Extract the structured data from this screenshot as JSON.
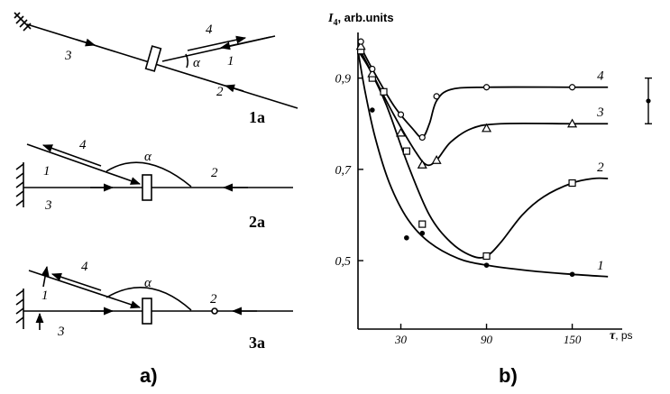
{
  "panel_a": {
    "label": "a)",
    "diagrams": [
      {
        "id": "1a",
        "label": "1a",
        "beam_labels": [
          "1",
          "2",
          "3",
          "4"
        ],
        "angle_label": "α"
      },
      {
        "id": "2a",
        "label": "2a",
        "beam_labels": [
          "1",
          "2",
          "3",
          "4"
        ],
        "angle_label": "α"
      },
      {
        "id": "3a",
        "label": "3a",
        "beam_labels": [
          "1",
          "2",
          "3",
          "4"
        ],
        "angle_label": "α"
      }
    ]
  },
  "panel_b": {
    "label": "b)",
    "y_title_main": "I",
    "y_title_sub": "4",
    "y_title_rest": ", arb.units",
    "x_title_main": "τ",
    "x_title_rest": ", ps",
    "chart_data": {
      "type": "line",
      "xlabel": "τ, ps",
      "ylabel": "I4, arb.units",
      "xlim": [
        0,
        185
      ],
      "ylim": [
        0.35,
        1.0
      ],
      "xticks": [
        30,
        90,
        150
      ],
      "xtick_labels": [
        "30",
        "90",
        "150"
      ],
      "yticks": [
        0.9,
        0.7,
        0.5
      ],
      "ytick_labels": [
        "0,9",
        "0,7",
        "0,5"
      ],
      "error_bar": {
        "y": 0.85,
        "half_width": 0.05
      },
      "series": [
        {
          "name": "1",
          "marker": "filled-circle",
          "x": [
            2,
            10,
            34,
            45,
            90,
            150
          ],
          "y": [
            0.96,
            0.83,
            0.55,
            0.56,
            0.49,
            0.47
          ],
          "curve": [
            [
              0,
              0.96
            ],
            [
              5,
              0.87
            ],
            [
              12,
              0.77
            ],
            [
              22,
              0.67
            ],
            [
              35,
              0.59
            ],
            [
              50,
              0.54
            ],
            [
              70,
              0.505
            ],
            [
              90,
              0.49
            ],
            [
              120,
              0.478
            ],
            [
              150,
              0.47
            ],
            [
              175,
              0.465
            ]
          ]
        },
        {
          "name": "2",
          "marker": "open-square",
          "x": [
            2,
            10,
            18,
            34,
            45,
            90,
            150
          ],
          "y": [
            0.96,
            0.9,
            0.87,
            0.74,
            0.58,
            0.51,
            0.67
          ],
          "curve": [
            [
              0,
              0.96
            ],
            [
              8,
              0.92
            ],
            [
              20,
              0.84
            ],
            [
              35,
              0.71
            ],
            [
              50,
              0.6
            ],
            [
              65,
              0.54
            ],
            [
              80,
              0.51
            ],
            [
              90,
              0.51
            ],
            [
              100,
              0.54
            ],
            [
              115,
              0.6
            ],
            [
              130,
              0.64
            ],
            [
              150,
              0.67
            ],
            [
              165,
              0.68
            ],
            [
              175,
              0.68
            ]
          ]
        },
        {
          "name": "3",
          "marker": "open-triangle",
          "x": [
            2,
            10,
            30,
            45,
            55,
            90,
            150
          ],
          "y": [
            0.97,
            0.91,
            0.78,
            0.71,
            0.72,
            0.79,
            0.8
          ],
          "curve": [
            [
              0,
              0.97
            ],
            [
              10,
              0.91
            ],
            [
              25,
              0.82
            ],
            [
              40,
              0.74
            ],
            [
              48,
              0.71
            ],
            [
              55,
              0.72
            ],
            [
              65,
              0.76
            ],
            [
              80,
              0.79
            ],
            [
              100,
              0.8
            ],
            [
              150,
              0.8
            ],
            [
              175,
              0.8
            ]
          ]
        },
        {
          "name": "4",
          "marker": "open-circle",
          "x": [
            2,
            10,
            30,
            45,
            55,
            90,
            150
          ],
          "y": [
            0.98,
            0.92,
            0.82,
            0.77,
            0.86,
            0.88,
            0.88
          ],
          "curve": [
            [
              0,
              0.98
            ],
            [
              10,
              0.92
            ],
            [
              25,
              0.84
            ],
            [
              38,
              0.79
            ],
            [
              45,
              0.77
            ],
            [
              50,
              0.8
            ],
            [
              55,
              0.85
            ],
            [
              65,
              0.875
            ],
            [
              90,
              0.88
            ],
            [
              150,
              0.88
            ],
            [
              175,
              0.88
            ]
          ]
        }
      ]
    }
  },
  "colors": {
    "ink": "#000000",
    "background": "#ffffff"
  }
}
